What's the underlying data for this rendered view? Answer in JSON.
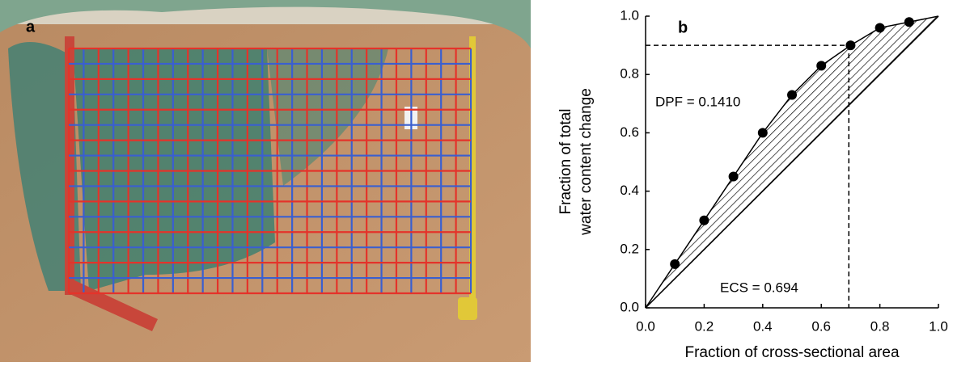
{
  "photo_label": "a",
  "chart_data": {
    "type": "scatter",
    "panel_label": "b",
    "xlabel": "Fraction of cross-sectional area",
    "ylabel": [
      "Fraction of total",
      "water content change"
    ],
    "x": [
      0.1,
      0.2,
      0.3,
      0.4,
      0.5,
      0.6,
      0.7,
      0.8,
      0.9
    ],
    "values": [
      0.15,
      0.3,
      0.45,
      0.6,
      0.73,
      0.83,
      0.9,
      0.96,
      0.98
    ],
    "xlim": [
      0,
      1
    ],
    "ylim": [
      0,
      1
    ],
    "xticks": [
      {
        "value": 0,
        "label": "0.0"
      },
      0.2,
      0.4,
      0.6,
      0.8,
      {
        "value": 1,
        "label": "1.0"
      }
    ],
    "yticks": [
      {
        "value": 0,
        "label": "0.0"
      },
      0.2,
      0.4,
      0.6,
      0.8,
      {
        "value": 1,
        "label": "1.0"
      }
    ],
    "reference_lines": {
      "x": 0.694,
      "y": 0.9
    },
    "annotations": [
      "DPF = 0.1410",
      "ECS = 0.694"
    ],
    "color": "#000000"
  }
}
